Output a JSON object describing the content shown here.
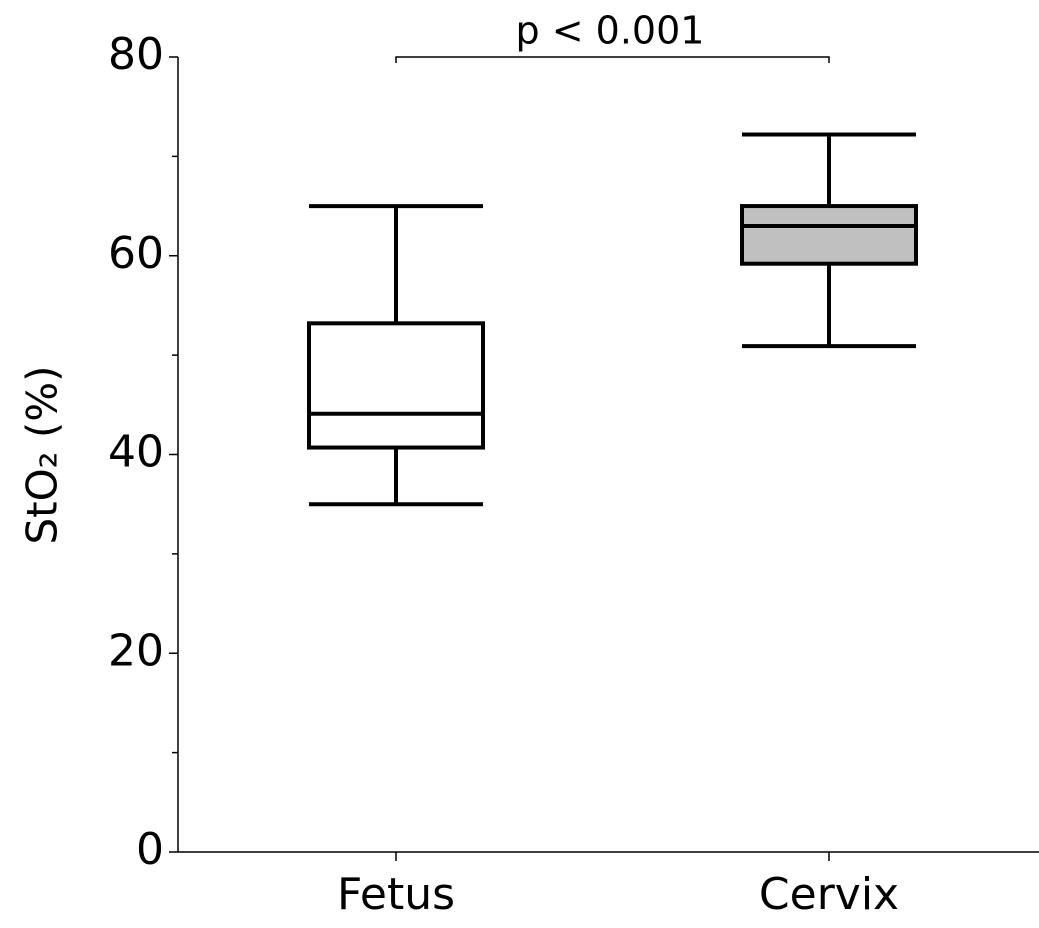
{
  "chart_data": {
    "type": "box",
    "ylabel": "StO₂ (%)",
    "annotation": "p < 0.001",
    "categories": [
      "Fetus",
      "Cervix"
    ],
    "boxes": [
      {
        "min": 35,
        "q1": 40.7,
        "median": 44.1,
        "q3": 53.2,
        "max": 65,
        "color": "#ffffff"
      },
      {
        "min": 50.9,
        "q1": 59.2,
        "median": 63,
        "q3": 65,
        "max": 72.2,
        "color": "#c0c0c0"
      }
    ],
    "ylim": [
      0,
      80
    ],
    "yticks": [
      0,
      20,
      40,
      60,
      80
    ],
    "yminor_ticks": [
      10,
      30,
      50,
      70
    ]
  }
}
